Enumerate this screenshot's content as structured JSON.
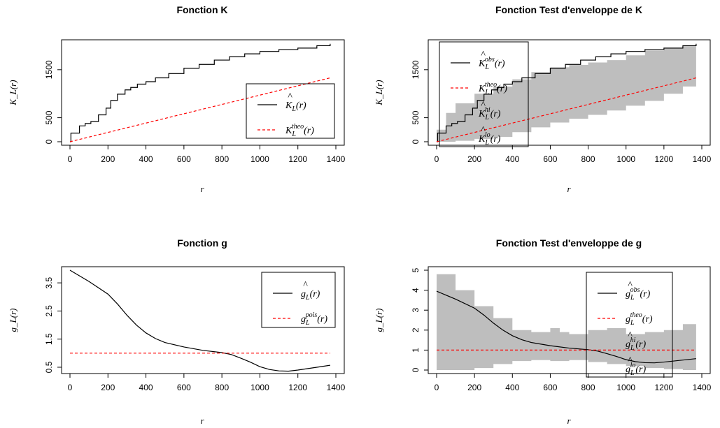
{
  "chart_data": [
    {
      "type": "line",
      "title": "Fonction K",
      "xlabel": "r",
      "ylabel": "K_L(r)",
      "xlim": [
        0,
        1400
      ],
      "ylim": [
        0,
        2050
      ],
      "xticks": [
        0,
        200,
        400,
        600,
        800,
        1000,
        1200,
        1400
      ],
      "yticks": [
        0,
        500,
        1500
      ],
      "legend_position": "bottom-right",
      "series": [
        {
          "name": "K̂_L(r)",
          "color": "#000000",
          "style": "step",
          "x": [
            0,
            5,
            50,
            80,
            110,
            150,
            190,
            215,
            250,
            290,
            320,
            355,
            400,
            450,
            520,
            600,
            680,
            760,
            840,
            920,
            1000,
            1100,
            1200,
            1300,
            1370
          ],
          "y": [
            0,
            180,
            330,
            380,
            420,
            560,
            700,
            860,
            990,
            1080,
            1130,
            1200,
            1250,
            1330,
            1420,
            1530,
            1610,
            1700,
            1770,
            1830,
            1880,
            1920,
            1950,
            2000,
            2040
          ]
        },
        {
          "name": "K_L^theo(r)",
          "color": "#ff0000",
          "style": "dashed",
          "x": [
            0,
            1370
          ],
          "y": [
            0,
            1330
          ]
        }
      ]
    },
    {
      "type": "line",
      "title": "Fonction Test d'enveloppe de K",
      "xlabel": "r",
      "ylabel": "K_L(r)",
      "xlim": [
        0,
        1400
      ],
      "ylim": [
        0,
        2050
      ],
      "xticks": [
        0,
        200,
        400,
        600,
        800,
        1000,
        1200,
        1400
      ],
      "yticks": [
        0,
        500,
        1500
      ],
      "legend_position": "top-left",
      "series": [
        {
          "name": "K̂_L^obs(r)",
          "color": "#000000",
          "style": "step",
          "x": [
            0,
            5,
            50,
            80,
            110,
            150,
            190,
            215,
            250,
            290,
            320,
            355,
            400,
            450,
            520,
            600,
            680,
            760,
            840,
            920,
            1000,
            1100,
            1200,
            1300,
            1370
          ],
          "y": [
            0,
            180,
            330,
            380,
            420,
            560,
            700,
            860,
            990,
            1080,
            1130,
            1200,
            1250,
            1330,
            1420,
            1530,
            1610,
            1700,
            1770,
            1830,
            1880,
            1920,
            1950,
            2000,
            2040
          ]
        },
        {
          "name": "K_L^theo(r)",
          "color": "#ff0000",
          "style": "dashed",
          "x": [
            0,
            1370
          ],
          "y": [
            0,
            1330
          ]
        },
        {
          "name": "K̂_L^hi(r)",
          "color": "#bebebe",
          "style": "envelope-upper",
          "x": [
            0,
            50,
            100,
            200,
            300,
            400,
            500,
            600,
            700,
            800,
            900,
            1000,
            1100,
            1200,
            1300,
            1370
          ],
          "y": [
            250,
            600,
            800,
            1000,
            1150,
            1300,
            1450,
            1550,
            1600,
            1650,
            1700,
            1800,
            1900,
            1950,
            2000,
            2050
          ]
        },
        {
          "name": "K̂_L^lo(r)",
          "color": "#bebebe",
          "style": "envelope-lower",
          "x": [
            0,
            100,
            200,
            300,
            400,
            500,
            600,
            700,
            800,
            900,
            1000,
            1100,
            1200,
            1300,
            1370
          ],
          "y": [
            0,
            20,
            60,
            100,
            200,
            300,
            400,
            480,
            560,
            650,
            750,
            850,
            1000,
            1150,
            1250
          ]
        }
      ]
    },
    {
      "type": "line",
      "title": "Fonction g",
      "xlabel": "r",
      "ylabel": "g_L(r)",
      "xlim": [
        0,
        1400
      ],
      "ylim": [
        0.4,
        3.95
      ],
      "xticks": [
        0,
        200,
        400,
        600,
        800,
        1000,
        1200,
        1400
      ],
      "yticks": [
        0.5,
        1.5,
        2.5,
        3.5
      ],
      "legend_position": "top-right",
      "series": [
        {
          "name": "ĝ_L(r)",
          "color": "#000000",
          "style": "solid",
          "x": [
            0,
            100,
            200,
            250,
            300,
            350,
            400,
            450,
            500,
            600,
            700,
            800,
            850,
            900,
            950,
            1000,
            1050,
            1100,
            1150,
            1200,
            1300,
            1370
          ],
          "y": [
            3.95,
            3.55,
            3.1,
            2.75,
            2.35,
            2.0,
            1.72,
            1.52,
            1.38,
            1.22,
            1.1,
            1.02,
            0.95,
            0.82,
            0.68,
            0.52,
            0.42,
            0.37,
            0.36,
            0.4,
            0.5,
            0.57
          ]
        },
        {
          "name": "g_L^pois(r)",
          "color": "#ff0000",
          "style": "dashed",
          "x": [
            0,
            1370
          ],
          "y": [
            1,
            1
          ]
        }
      ]
    },
    {
      "type": "line",
      "title": "Fonction Test d'enveloppe de g",
      "xlabel": "r",
      "ylabel": "g_L(r)",
      "xlim": [
        0,
        1400
      ],
      "ylim": [
        0,
        5
      ],
      "xticks": [
        0,
        200,
        400,
        600,
        800,
        1000,
        1200,
        1400
      ],
      "yticks": [
        0,
        1,
        2,
        3,
        4,
        5
      ],
      "legend_position": "right",
      "series": [
        {
          "name": "ĝ_L^obs(r)",
          "color": "#000000",
          "style": "solid",
          "x": [
            0,
            100,
            200,
            250,
            300,
            350,
            400,
            450,
            500,
            600,
            700,
            800,
            850,
            900,
            950,
            1000,
            1050,
            1100,
            1150,
            1200,
            1300,
            1370
          ],
          "y": [
            3.95,
            3.55,
            3.1,
            2.75,
            2.35,
            2.0,
            1.72,
            1.52,
            1.38,
            1.22,
            1.1,
            1.02,
            0.95,
            0.82,
            0.68,
            0.52,
            0.42,
            0.37,
            0.36,
            0.4,
            0.5,
            0.57
          ]
        },
        {
          "name": "g_L^theo(r)",
          "color": "#ff0000",
          "style": "dashed",
          "x": [
            0,
            1370
          ],
          "y": [
            1,
            1
          ]
        },
        {
          "name": "ĝ_L^hi(r)",
          "color": "#bebebe",
          "style": "envelope-upper",
          "x": [
            0,
            100,
            200,
            300,
            400,
            500,
            600,
            650,
            700,
            800,
            900,
            1000,
            1100,
            1200,
            1300,
            1370
          ],
          "y": [
            4.8,
            4.0,
            3.2,
            2.6,
            2.0,
            1.9,
            2.1,
            1.9,
            1.8,
            2.0,
            2.1,
            1.8,
            1.9,
            2.0,
            2.3,
            2.5
          ]
        },
        {
          "name": "ĝ_L^lo(r)",
          "color": "#bebebe",
          "style": "envelope-lower",
          "x": [
            0,
            100,
            200,
            300,
            400,
            500,
            600,
            700,
            800,
            900,
            1000,
            1100,
            1200,
            1300,
            1370
          ],
          "y": [
            0.0,
            0.0,
            0.1,
            0.3,
            0.45,
            0.5,
            0.45,
            0.5,
            0.4,
            0.3,
            0.2,
            0.1,
            0.05,
            0.0,
            0.0
          ]
        }
      ]
    }
  ]
}
